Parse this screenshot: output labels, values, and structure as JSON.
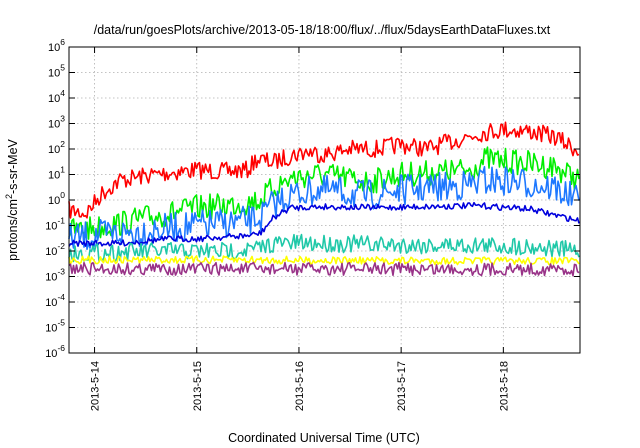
{
  "chart_data": {
    "type": "line",
    "title": "/data/run/goesPlots/archive/2013-05-18/18:00/flux/../flux/5daysEarthDataFluxes.txt",
    "xlabel": "Coordinated Universal Time (UTC)",
    "ylabel": {
      "base": "protons/cm",
      "sup": "2",
      "rest": "-s-sr-MeV"
    },
    "y_scale": "log",
    "ylim": [
      1e-06,
      1000000.0
    ],
    "y_ticks": [
      {
        "value": 1e-06,
        "base": "10",
        "exp": "-6"
      },
      {
        "value": 1e-05,
        "base": "10",
        "exp": "-5"
      },
      {
        "value": 0.0001,
        "base": "10",
        "exp": "-4"
      },
      {
        "value": 0.001,
        "base": "10",
        "exp": "-3"
      },
      {
        "value": 0.01,
        "base": "10",
        "exp": "-2"
      },
      {
        "value": 0.1,
        "base": "10",
        "exp": "-1"
      },
      {
        "value": 1.0,
        "base": "10",
        "exp": "0"
      },
      {
        "value": 10.0,
        "base": "10",
        "exp": "1"
      },
      {
        "value": 100.0,
        "base": "10",
        "exp": "2"
      },
      {
        "value": 1000.0,
        "base": "10",
        "exp": "3"
      },
      {
        "value": 10000.0,
        "base": "10",
        "exp": "4"
      },
      {
        "value": 100000.0,
        "base": "10",
        "exp": "5"
      },
      {
        "value": 1000000.0,
        "base": "10",
        "exp": "6"
      }
    ],
    "xlim": [
      "2013-05-13T18:00",
      "2013-05-18T18:00"
    ],
    "x_ticks": [
      {
        "value": "2013-05-14T00:00",
        "label": "2013-5-14"
      },
      {
        "value": "2013-05-15T00:00",
        "label": "2013-5-15"
      },
      {
        "value": "2013-05-16T00:00",
        "label": "2013-5-16"
      },
      {
        "value": "2013-05-17T00:00",
        "label": "2013-5-17"
      },
      {
        "value": "2013-05-18T00:00",
        "label": "2013-5-18"
      }
    ],
    "grid": true,
    "series": [
      {
        "color": "#ff0000",
        "noise": 0.35,
        "x": [
          "2013-05-13T18:00",
          "2013-05-13T22:00",
          "2013-05-14T02:00",
          "2013-05-14T06:00",
          "2013-05-14T12:00",
          "2013-05-14T18:00",
          "2013-05-15T00:00",
          "2013-05-15T06:00",
          "2013-05-15T12:00",
          "2013-05-15T14:00",
          "2013-05-15T18:00",
          "2013-05-15T22:00",
          "2013-05-16T02:00",
          "2013-05-16T06:00",
          "2013-05-16T12:00",
          "2013-05-16T18:00",
          "2013-05-17T00:00",
          "2013-05-17T06:00",
          "2013-05-17T12:00",
          "2013-05-17T18:00",
          "2013-05-18T00:00",
          "2013-05-18T06:00",
          "2013-05-18T12:00",
          "2013-05-18T18:00"
        ],
        "y": [
          0.4,
          0.3,
          2,
          6,
          9,
          12,
          15,
          13,
          15,
          40,
          30,
          55,
          80,
          60,
          100,
          100,
          150,
          100,
          200,
          400,
          600,
          500,
          300,
          80
        ]
      },
      {
        "color": "#00ee00",
        "noise": 0.5,
        "x": [
          "2013-05-13T18:00",
          "2013-05-14T00:00",
          "2013-05-14T06:00",
          "2013-05-14T12:00",
          "2013-05-14T18:00",
          "2013-05-15T00:00",
          "2013-05-15T06:00",
          "2013-05-15T12:00",
          "2013-05-15T15:00",
          "2013-05-15T18:00",
          "2013-05-15T22:00",
          "2013-05-16T04:00",
          "2013-05-16T10:00",
          "2013-05-16T16:00",
          "2013-05-17T00:00",
          "2013-05-17T08:00",
          "2013-05-17T16:00",
          "2013-05-17T20:00",
          "2013-05-18T04:00",
          "2013-05-18T12:00",
          "2013-05-18T18:00"
        ],
        "y": [
          0.06,
          0.08,
          0.12,
          0.2,
          0.3,
          0.5,
          0.6,
          0.8,
          1,
          3,
          7,
          10,
          8,
          5,
          10,
          12,
          15,
          40,
          30,
          20,
          6
        ]
      },
      {
        "color": "#1e78ff",
        "noise": 0.6,
        "x": [
          "2013-05-13T18:00",
          "2013-05-14T00:00",
          "2013-05-14T06:00",
          "2013-05-14T12:00",
          "2013-05-14T18:00",
          "2013-05-15T00:00",
          "2013-05-15T06:00",
          "2013-05-15T12:00",
          "2013-05-15T15:00",
          "2013-05-15T18:00",
          "2013-05-15T22:00",
          "2013-05-16T04:00",
          "2013-05-16T10:00",
          "2013-05-16T16:00",
          "2013-05-17T00:00",
          "2013-05-17T08:00",
          "2013-05-17T16:00",
          "2013-05-17T20:00",
          "2013-05-18T04:00",
          "2013-05-18T12:00",
          "2013-05-18T18:00"
        ],
        "y": [
          0.03,
          0.04,
          0.05,
          0.06,
          0.08,
          0.1,
          0.12,
          0.15,
          0.2,
          0.7,
          1.5,
          2.5,
          2,
          1.5,
          2.5,
          3,
          4,
          6,
          5,
          3,
          0.8
        ]
      },
      {
        "color": "#0000dd",
        "noise": 0.12,
        "x": [
          "2013-05-13T18:00",
          "2013-05-14T00:00",
          "2013-05-14T06:00",
          "2013-05-14T12:00",
          "2013-05-14T18:00",
          "2013-05-15T00:00",
          "2013-05-15T06:00",
          "2013-05-15T12:00",
          "2013-05-15T15:00",
          "2013-05-15T18:00",
          "2013-05-15T22:00",
          "2013-05-16T06:00",
          "2013-05-16T18:00",
          "2013-05-17T06:00",
          "2013-05-17T18:00",
          "2013-05-18T06:00",
          "2013-05-18T18:00"
        ],
        "y": [
          0.02,
          0.02,
          0.02,
          0.025,
          0.03,
          0.03,
          0.035,
          0.04,
          0.05,
          0.2,
          0.5,
          0.55,
          0.5,
          0.55,
          0.6,
          0.45,
          0.15
        ]
      },
      {
        "color": "#1fc8a8",
        "noise": 0.35,
        "x": [
          "2013-05-13T18:00",
          "2013-05-14T06:00",
          "2013-05-14T18:00",
          "2013-05-15T06:00",
          "2013-05-15T14:00",
          "2013-05-15T18:00",
          "2013-05-16T06:00",
          "2013-05-16T18:00",
          "2013-05-17T06:00",
          "2013-05-17T18:00",
          "2013-05-18T06:00",
          "2013-05-18T18:00"
        ],
        "y": [
          0.008,
          0.009,
          0.01,
          0.01,
          0.012,
          0.02,
          0.02,
          0.018,
          0.017,
          0.017,
          0.015,
          0.01
        ]
      },
      {
        "color": "#ffff00",
        "noise": 0.15,
        "x": [
          "2013-05-13T18:00",
          "2013-05-15T06:00",
          "2013-05-16T18:00",
          "2013-05-18T18:00"
        ],
        "y": [
          0.0045,
          0.0045,
          0.0042,
          0.004
        ]
      },
      {
        "color": "#993388",
        "noise": 0.25,
        "x": [
          "2013-05-13T18:00",
          "2013-05-15T06:00",
          "2013-05-16T18:00",
          "2013-05-18T18:00"
        ],
        "y": [
          0.002,
          0.002,
          0.002,
          0.0019
        ]
      }
    ]
  }
}
